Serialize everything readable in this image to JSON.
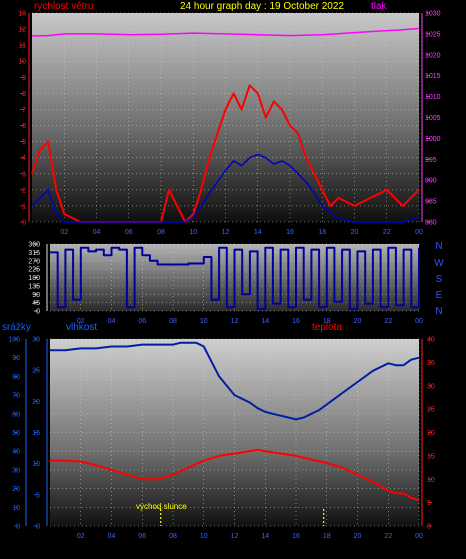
{
  "header": {
    "title": "24 hour graph day : 19 October 2022",
    "left_label": "rychlost větru",
    "right_label": "tlak"
  },
  "middle": {
    "compass": [
      "N",
      "W",
      "S",
      "E",
      "N"
    ]
  },
  "bottom_header": {
    "left_label": "srážky",
    "mid_label": "vlhkost",
    "right_label": "teplota"
  },
  "annotation": {
    "sunrise_label": "východ slunce"
  },
  "colors": {
    "wind": "#ff0000",
    "gust": "#ff0000",
    "wind_avg": "#0000c8",
    "pressure": "#ff00ff",
    "direction": "#0000a0",
    "humidity": "#0020a0",
    "temperature": "#ff0000",
    "marker": "#ffff00"
  },
  "chart_data": [
    {
      "type": "line",
      "title": "24 hour graph day : 19 October 2022",
      "x_ticks": [
        "02",
        "04",
        "06",
        "08",
        "10",
        "12",
        "14",
        "16",
        "18",
        "20",
        "22",
        "00"
      ],
      "xlim": [
        0,
        24
      ],
      "y_left_ticks": [
        "0",
        "1",
        "2",
        "3",
        "4",
        "5",
        "6",
        "7",
        "8",
        "9",
        "10",
        "11",
        "12",
        "13"
      ],
      "y_left_lim": [
        0,
        13
      ],
      "y_right_ticks": [
        "980",
        "985",
        "990",
        "995",
        "1000",
        "1005",
        "1010",
        "1015",
        "1020",
        "1025",
        "1030"
      ],
      "y_right_lim": [
        980,
        1030
      ],
      "series": [
        {
          "name": "rychlost větru",
          "axis": "left",
          "role": "gust",
          "x": [
            0,
            0.5,
            1,
            1.5,
            2,
            3,
            4,
            5,
            6,
            7,
            8,
            8.5,
            9,
            9.5,
            10,
            10.5,
            11,
            11.5,
            12,
            12.5,
            13,
            13.5,
            14,
            14.5,
            15,
            15.5,
            16,
            16.5,
            17,
            17.5,
            18,
            18.5,
            19,
            20,
            21,
            22,
            23,
            23.5,
            24
          ],
          "y": [
            3,
            4.5,
            5,
            2,
            0.5,
            0,
            0,
            0,
            0,
            0,
            0,
            2,
            1,
            0,
            0.5,
            2,
            4,
            5.5,
            7,
            8,
            7,
            8.5,
            8,
            6.5,
            7.5,
            7,
            6,
            5.5,
            4,
            3,
            2,
            1,
            1.5,
            1,
            1.5,
            2,
            1,
            1.5,
            2
          ]
        },
        {
          "name": "",
          "axis": "left",
          "role": "avg",
          "x": [
            0,
            0.5,
            1,
            1.5,
            2,
            3,
            4,
            5,
            6,
            7,
            8,
            9,
            9.5,
            10,
            10.5,
            11,
            11.5,
            12,
            12.5,
            13,
            13.5,
            14,
            14.5,
            15,
            15.5,
            16,
            16.5,
            17,
            17.5,
            18,
            19,
            20,
            21,
            22,
            23,
            24
          ],
          "y": [
            1,
            1.5,
            2,
            0.5,
            0,
            0,
            0,
            0,
            0,
            0,
            0,
            0,
            0,
            0.3,
            1,
            1.8,
            2.5,
            3.2,
            3.8,
            3.5,
            4,
            4.2,
            4,
            3.6,
            3.8,
            3.5,
            3,
            2.5,
            1.8,
            1,
            0.2,
            0,
            0,
            0,
            0,
            0.3
          ]
        },
        {
          "name": "tlak",
          "axis": "right",
          "x": [
            0,
            1,
            2,
            4,
            6,
            8,
            10,
            12,
            14,
            16,
            18,
            20,
            22,
            23,
            24
          ],
          "y": [
            1024.5,
            1024.6,
            1025,
            1025,
            1024.8,
            1024.9,
            1025.2,
            1025,
            1024.8,
            1024.6,
            1024.8,
            1025.3,
            1025.8,
            1026,
            1026.3
          ]
        }
      ]
    },
    {
      "type": "line",
      "x_ticks": [
        "02",
        "04",
        "06",
        "08",
        "10",
        "12",
        "14",
        "16",
        "18",
        "20",
        "22",
        "00"
      ],
      "xlim": [
        0,
        24
      ],
      "y_ticks": [
        "0",
        "45",
        "90",
        "135",
        "180",
        "225",
        "270",
        "315",
        "360"
      ],
      "ylim": [
        0,
        360
      ],
      "series": [
        {
          "name": "",
          "axis": "left",
          "x": [
            0,
            0.5,
            1,
            1.5,
            2,
            2.5,
            3,
            3.5,
            4,
            4.5,
            5,
            5.5,
            6,
            6.5,
            7,
            8,
            9,
            10,
            10.5,
            11,
            11.5,
            12,
            12.5,
            13,
            13.5,
            14,
            14.5,
            15,
            15.5,
            16,
            16.5,
            17,
            17.5,
            18,
            18.5,
            19,
            19.5,
            20,
            20.5,
            21,
            21.5,
            22,
            22.5,
            23,
            23.5,
            24
          ],
          "y": [
            315,
            20,
            330,
            60,
            340,
            320,
            330,
            300,
            340,
            330,
            20,
            340,
            300,
            270,
            250,
            250,
            255,
            290,
            60,
            340,
            20,
            330,
            90,
            320,
            10,
            340,
            40,
            330,
            20,
            340,
            60,
            330,
            20,
            340,
            50,
            330,
            10,
            320,
            40,
            330,
            20,
            340,
            30,
            330,
            20,
            340
          ]
        }
      ]
    },
    {
      "type": "line",
      "x_ticks": [
        "02",
        "04",
        "06",
        "08",
        "10",
        "12",
        "14",
        "16",
        "18",
        "20",
        "22",
        "00"
      ],
      "xlim": [
        0,
        24
      ],
      "y_left_ticks": [
        "0",
        "10",
        "20",
        "30",
        "40",
        "50",
        "60",
        "70",
        "80",
        "90",
        "100"
      ],
      "y_left_lim": [
        0,
        100
      ],
      "y_left_inner_ticks": [
        "0",
        "5",
        "10",
        "15",
        "20",
        "25",
        "30"
      ],
      "y_left_inner_lim": [
        0,
        30
      ],
      "y_right_ticks": [
        "0",
        "5",
        "10",
        "15",
        "20",
        "25",
        "30",
        "35",
        "40"
      ],
      "y_right_lim": [
        0,
        40
      ],
      "series": [
        {
          "name": "vlhkost",
          "axis": "left",
          "x": [
            0,
            1,
            2,
            3,
            4,
            5,
            6,
            7,
            8,
            8.5,
            9,
            9.5,
            10,
            10.5,
            11,
            11.5,
            12,
            12.5,
            13,
            13.5,
            14,
            14.5,
            15,
            15.5,
            16,
            16.5,
            17,
            17.5,
            18,
            19,
            20,
            21,
            22,
            22.5,
            23,
            23.5,
            24
          ],
          "y": [
            94,
            94,
            95,
            95,
            96,
            96,
            97,
            97,
            97,
            98,
            98,
            98,
            96,
            88,
            80,
            75,
            70,
            68,
            66,
            63,
            61,
            60,
            59,
            58,
            57,
            58,
            60,
            62,
            65,
            71,
            77,
            83,
            87,
            86,
            86,
            89,
            90
          ]
        },
        {
          "name": "teplota",
          "axis": "right",
          "x": [
            0,
            1,
            2,
            3,
            4,
            5,
            6,
            6.5,
            7,
            8,
            9,
            10,
            11,
            12,
            13,
            13.5,
            14,
            15,
            16,
            17,
            18,
            19,
            20,
            21,
            22,
            22.5,
            23,
            23.5,
            24
          ],
          "y": [
            14,
            14,
            13.8,
            13,
            12,
            11,
            10,
            10,
            10,
            11,
            12.5,
            14,
            15,
            15.5,
            16,
            16.3,
            16,
            15.5,
            15,
            14.2,
            13.5,
            12.5,
            11,
            9.5,
            7.5,
            7,
            7,
            6,
            5.5
          ]
        }
      ],
      "annotations": [
        {
          "label": "východ slunce",
          "x": 7.2
        },
        {
          "label": "",
          "x": 17.8
        }
      ]
    }
  ]
}
